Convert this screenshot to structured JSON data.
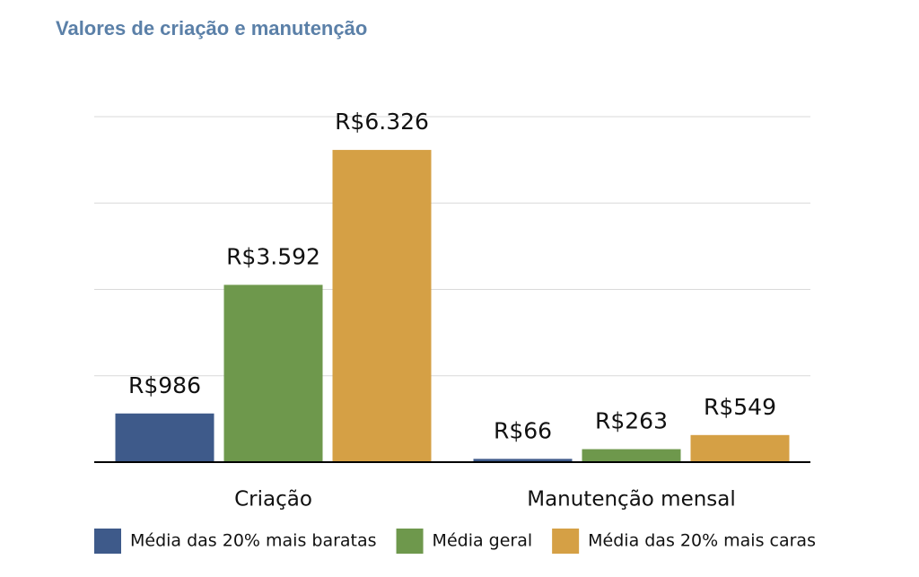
{
  "chart_data": {
    "type": "bar",
    "title": "Valores de criação e manutenção",
    "categories": [
      "Criação",
      "Manutenção mensal"
    ],
    "series": [
      {
        "name": "Média das 20% mais baratas",
        "color": "#3e5a8a",
        "values": [
          986,
          66
        ],
        "value_labels": [
          "R$986",
          "R$66"
        ]
      },
      {
        "name": "Média geral",
        "color": "#6e984c",
        "values": [
          3592,
          263
        ],
        "value_labels": [
          "R$3.592",
          "R$263"
        ]
      },
      {
        "name": "Média das 20% mais caras",
        "color": "#d5a045",
        "values": [
          6326,
          549
        ],
        "value_labels": [
          "R$6.326",
          "R$549"
        ]
      }
    ],
    "ylim": [
      0,
      7000
    ],
    "yticks": [
      0,
      1750,
      3500,
      5250,
      7000
    ],
    "ytick_labels": false,
    "grid": true,
    "legend": "bottom"
  }
}
